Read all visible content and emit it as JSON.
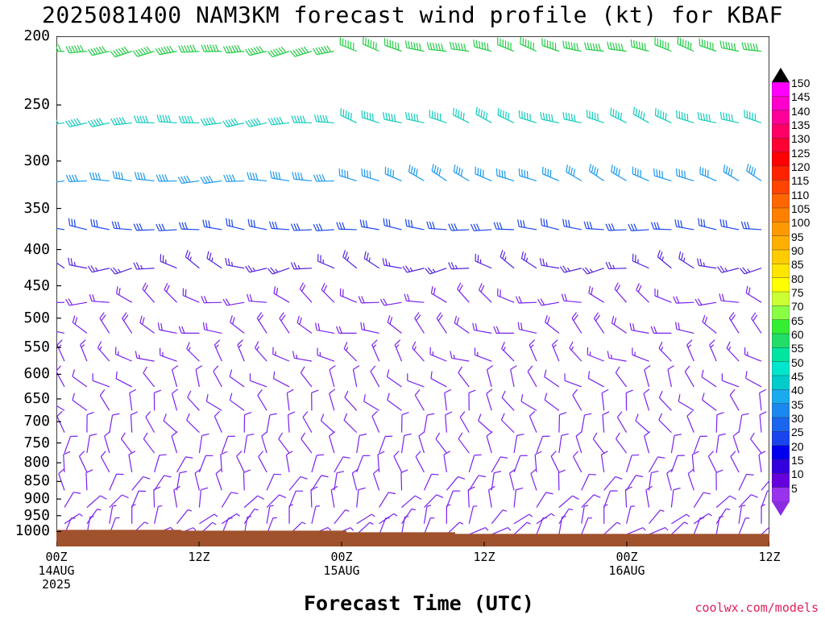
{
  "title": "2025081400 NAM3KM forecast wind profile (kt) for KBAF",
  "xlabel": "Forecast Time (UTC)",
  "credit": "coolwx.com/models",
  "chart_data": {
    "type": "wind-barb-profile",
    "y_axis": {
      "ticks": [
        "200",
        "250",
        "300",
        "350",
        "400",
        "450",
        "500",
        "550",
        "600",
        "650",
        "700",
        "750",
        "800",
        "850",
        "900",
        "950",
        "1000"
      ],
      "range": [
        200,
        1050
      ]
    },
    "x_axis": {
      "ticks": [
        {
          "line1": "00Z",
          "line2": "14AUG",
          "line3": "2025"
        },
        {
          "line1": "12Z",
          "line2": "",
          "line3": ""
        },
        {
          "line1": "00Z",
          "line2": "15AUG",
          "line3": ""
        },
        {
          "line1": "12Z",
          "line2": "",
          "line3": ""
        },
        {
          "line1": "00Z",
          "line2": "16AUG",
          "line3": ""
        },
        {
          "line1": "12Z",
          "line2": "",
          "line3": ""
        }
      ],
      "range_hours": [
        0,
        60
      ]
    },
    "colorbar": {
      "labels": [
        "150",
        "145",
        "140",
        "135",
        "130",
        "125",
        "120",
        "115",
        "110",
        "105",
        "100",
        "95",
        "90",
        "85",
        "80",
        "75",
        "70",
        "65",
        "60",
        "55",
        "50",
        "45",
        "40",
        "35",
        "30",
        "25",
        "20",
        "15",
        "10",
        "5"
      ],
      "colors": [
        "#ff00ff",
        "#ff00cc",
        "#ff0099",
        "#ff0066",
        "#ff0033",
        "#ff0000",
        "#ff2200",
        "#ff4400",
        "#ff6600",
        "#ff8000",
        "#ff9900",
        "#ffb000",
        "#ffcc00",
        "#ffe600",
        "#ffff00",
        "#ccff33",
        "#88ff44",
        "#33ee33",
        "#22dd66",
        "#00e6a0",
        "#00e6cc",
        "#00cccc",
        "#1aaaee",
        "#1a88ee",
        "#1a66ee",
        "#1a44ee",
        "#0000ee",
        "#3300dd",
        "#6600dd",
        "#9933ee"
      ]
    },
    "wind_rows": [
      {
        "level": 210,
        "hue": "green/cyan",
        "dir_deg": 260,
        "speed": 60
      },
      {
        "level": 265,
        "hue": "cyan",
        "dir_deg": 265,
        "speed": 50
      },
      {
        "level": 320,
        "hue": "light-blue",
        "dir_deg": 270,
        "speed": 40
      },
      {
        "level": 375,
        "hue": "blue",
        "dir_deg": 275,
        "speed": 30
      },
      {
        "level": 425,
        "hue": "blue-violet",
        "dir_deg": 280,
        "speed": 25
      },
      {
        "level": 475,
        "hue": "violet",
        "dir_deg": 290,
        "speed": 20
      },
      {
        "level": 525,
        "hue": "violet",
        "dir_deg": 300,
        "speed": 20
      },
      {
        "level": 575,
        "hue": "violet",
        "dir_deg": 310,
        "speed": 15
      },
      {
        "level": 625,
        "hue": "violet",
        "dir_deg": 320,
        "speed": 10
      },
      {
        "level": 675,
        "hue": "violet",
        "dir_deg": 330,
        "speed": 10
      },
      {
        "level": 725,
        "hue": "violet",
        "dir_deg": 340,
        "speed": 10
      },
      {
        "level": 775,
        "hue": "violet",
        "dir_deg": 350,
        "speed": 10
      },
      {
        "level": 825,
        "hue": "violet",
        "dir_deg": 0,
        "speed": 10
      },
      {
        "level": 875,
        "hue": "violet",
        "dir_deg": 10,
        "speed": 10
      },
      {
        "level": 925,
        "hue": "violet",
        "dir_deg": 20,
        "speed": 10
      },
      {
        "level": 975,
        "hue": "violet",
        "dir_deg": 30,
        "speed": 5
      },
      {
        "level": 1010,
        "hue": "violet",
        "dir_deg": 40,
        "speed": 5
      }
    ],
    "ground_color": "#a0522d"
  }
}
